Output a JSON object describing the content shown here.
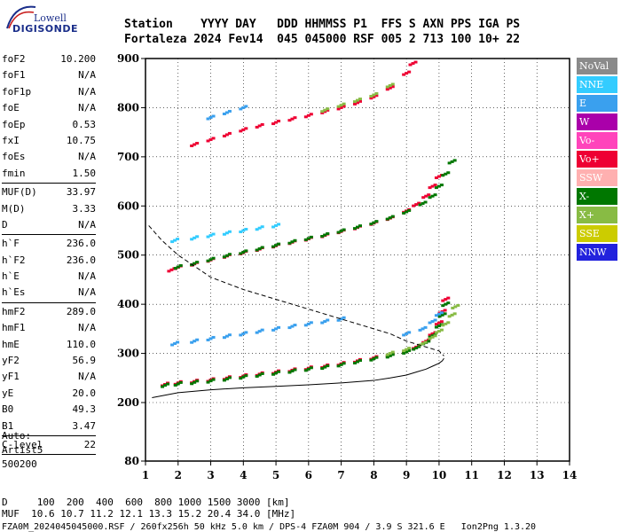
{
  "logo": {
    "line1": "Lowell",
    "line2": "DIGISONDE"
  },
  "header": {
    "line1": "Station    YYYY DAY   DDD HHMMSS P1  FFS S AXN PPS IGA PS",
    "line2": "Fortaleza 2024 Fev14  045 045000 RSF 005 2 713 100 10+ 22"
  },
  "params": [
    {
      "k": "foF2",
      "v": "10.200"
    },
    {
      "k": "foF1",
      "v": "N/A"
    },
    {
      "k": "foF1p",
      "v": "N/A"
    },
    {
      "k": "foE",
      "v": "N/A"
    },
    {
      "k": "foEp",
      "v": "0.53"
    },
    {
      "k": "fxI",
      "v": "10.75"
    },
    {
      "k": "foEs",
      "v": "N/A"
    },
    {
      "k": "fmin",
      "v": "1.50"
    },
    {
      "sep": true
    },
    {
      "k": "MUF(D)",
      "v": "33.97"
    },
    {
      "k": "M(D)",
      "v": "3.33"
    },
    {
      "k": "D",
      "v": "N/A"
    },
    {
      "sep": true
    },
    {
      "k": "h`F",
      "v": "236.0"
    },
    {
      "k": "h`F2",
      "v": "236.0"
    },
    {
      "k": "h`E",
      "v": "N/A"
    },
    {
      "k": "h`Es",
      "v": "N/A"
    },
    {
      "sep": true
    },
    {
      "k": "hmF2",
      "v": "289.0"
    },
    {
      "k": "hmF1",
      "v": "N/A"
    },
    {
      "k": "hmE",
      "v": "110.0"
    },
    {
      "k": "yF2",
      "v": "56.9"
    },
    {
      "k": "yF1",
      "v": "N/A"
    },
    {
      "k": "yE",
      "v": "20.0"
    },
    {
      "k": "B0",
      "v": "49.3"
    },
    {
      "k": "B1",
      "v": "3.47"
    },
    {
      "sep": true
    },
    {
      "k": "C-level",
      "v": "22"
    },
    {
      "sep": true
    }
  ],
  "auto": {
    "line1": "Auto:",
    "line2": "Artist5",
    "line3": "500200"
  },
  "footer": {
    "line1": "D     100  200  400  600  800 1000 1500 3000 [km]",
    "line2": "MUF  10.6 10.7 11.2 12.1 13.3 15.2 20.4 34.0 [MHz]",
    "line3": "FZA0M_2024045045000.RSF / 260fx256h 50 kHz 5.0 km / DPS-4 FZA0M 904 / 3.9 S 321.6 E   Ion2Png 1.3.20"
  },
  "legend": [
    {
      "label": "NoVal",
      "color": "#8a8a8a"
    },
    {
      "label": "NNE",
      "color": "#33ccff"
    },
    {
      "label": "E",
      "color": "#3aa0ee"
    },
    {
      "label": "W",
      "color": "#aa00aa"
    },
    {
      "label": "Vo-",
      "color": "#ff44bb"
    },
    {
      "label": "Vo+",
      "color": "#ee0033"
    },
    {
      "label": "SSW",
      "color": "#ffb0b0"
    },
    {
      "label": "X-",
      "color": "#007700"
    },
    {
      "label": "X+",
      "color": "#88bb44"
    },
    {
      "label": "SSE",
      "color": "#cccc00"
    },
    {
      "label": "NNW",
      "color": "#2222dd"
    }
  ],
  "chart_data": {
    "type": "scatter",
    "xlim": [
      1,
      14
    ],
    "ylim": [
      80,
      900
    ],
    "xticks": [
      1,
      2,
      3,
      4,
      5,
      6,
      7,
      8,
      9,
      10,
      11,
      12,
      13,
      14
    ],
    "yticks": [
      80,
      200,
      300,
      400,
      500,
      600,
      700,
      800,
      900
    ],
    "xlabel": "",
    "ylabel": "",
    "grid": true,
    "traces": [
      {
        "kind": "dots",
        "color": "#ee0033",
        "x": [
          1.6,
          2,
          2.5,
          3,
          3.5,
          4,
          4.5,
          5,
          5.5,
          6,
          6.5,
          7,
          7.5,
          8,
          8.5,
          9,
          9.3,
          9.6,
          9.8,
          10,
          10.1,
          10.2
        ],
        "y": [
          237,
          240,
          243,
          246,
          250,
          254,
          258,
          262,
          266,
          270,
          274,
          279,
          285,
          291,
          297,
          305,
          313,
          325,
          340,
          362,
          385,
          410
        ]
      },
      {
        "kind": "dots",
        "color": "#007700",
        "x": [
          1.6,
          2,
          2.5,
          3,
          3.5,
          4,
          4.5,
          5,
          5.5,
          6,
          6.5,
          7,
          7.5,
          8,
          8.5,
          9,
          9.3,
          9.6,
          9.8,
          10,
          10.1,
          10.2
        ],
        "y": [
          235,
          238,
          241,
          244,
          248,
          252,
          256,
          260,
          264,
          268,
          272,
          277,
          283,
          289,
          295,
          303,
          311,
          322,
          336,
          356,
          378,
          400
        ]
      },
      {
        "kind": "dots",
        "color": "#88bb44",
        "x": [
          8.5,
          9,
          9.5,
          9.8,
          10,
          10.2,
          10.4,
          10.5
        ],
        "y": [
          300,
          308,
          320,
          333,
          345,
          360,
          378,
          395
        ]
      },
      {
        "kind": "dots",
        "color": "#ee0033",
        "x": [
          1.8,
          2,
          2.5,
          3,
          3.5,
          4,
          4.5,
          5,
          5.5,
          6,
          6.5,
          7,
          7.5,
          8,
          8.5,
          9,
          9.3,
          9.6,
          9.8,
          10
        ],
        "y": [
          470,
          475,
          482,
          490,
          498,
          505,
          512,
          519,
          526,
          533,
          540,
          548,
          556,
          565,
          575,
          590,
          603,
          620,
          640,
          660
        ]
      },
      {
        "kind": "dots",
        "color": "#007700",
        "x": [
          2,
          2.5,
          3,
          3.5,
          4,
          4.5,
          5,
          5.5,
          6,
          6.5,
          7,
          7.5,
          8,
          8.5,
          9,
          9.5,
          9.8,
          10,
          10.2,
          10.4
        ],
        "y": [
          476,
          483,
          491,
          499,
          506,
          513,
          520,
          527,
          534,
          541,
          549,
          557,
          566,
          576,
          588,
          605,
          620,
          640,
          665,
          690
        ]
      },
      {
        "kind": "dots",
        "color": "#ee0033",
        "x": [
          2.5,
          3,
          3.5,
          4,
          4.5,
          5,
          5.5,
          6,
          6.5,
          7,
          7.5,
          8,
          8.5,
          9,
          9.2
        ],
        "y": [
          725,
          735,
          745,
          755,
          763,
          770,
          777,
          784,
          792,
          800,
          810,
          822,
          840,
          870,
          890
        ]
      },
      {
        "kind": "dots",
        "color": "#88bb44",
        "x": [
          6.5,
          7,
          7.5,
          8,
          8.5
        ],
        "y": [
          795,
          805,
          815,
          826,
          845
        ]
      },
      {
        "kind": "dots",
        "color": "#3aa0ee",
        "x": [
          1.9,
          2.5,
          3,
          3.5,
          4,
          4.5,
          5,
          5.5,
          6,
          6.5,
          7
        ],
        "y": [
          320,
          325,
          330,
          335,
          340,
          345,
          350,
          355,
          360,
          365,
          370
        ]
      },
      {
        "kind": "dots",
        "color": "#33ccff",
        "x": [
          1.9,
          2.5,
          3,
          3.5,
          4,
          4.5,
          5
        ],
        "y": [
          530,
          535,
          540,
          545,
          550,
          555,
          560
        ]
      },
      {
        "kind": "dots",
        "color": "#3aa0ee",
        "x": [
          3,
          3.5,
          4
        ],
        "y": [
          780,
          790,
          800
        ]
      },
      {
        "kind": "dots",
        "color": "#3aa0ee",
        "x": [
          9,
          9.5,
          9.8,
          10
        ],
        "y": [
          340,
          350,
          365,
          380
        ]
      },
      {
        "kind": "line",
        "color": "#000000",
        "dash": false,
        "x": [
          1.2,
          2,
          3,
          4,
          5,
          6,
          7,
          8,
          8.5,
          9,
          9.3,
          9.6,
          9.8,
          10,
          10.1,
          10.15
        ],
        "y": [
          210,
          220,
          226,
          230,
          233,
          236,
          240,
          245,
          250,
          256,
          262,
          268,
          274,
          280,
          285,
          290
        ]
      },
      {
        "kind": "line",
        "color": "#000000",
        "dash": true,
        "x": [
          1.1,
          1.5,
          2,
          3,
          4,
          5,
          6,
          7,
          8,
          8.5,
          9,
          9.5,
          10,
          10.15
        ],
        "y": [
          560,
          530,
          500,
          455,
          430,
          410,
          390,
          370,
          350,
          340,
          325,
          315,
          305,
          295
        ]
      }
    ]
  }
}
